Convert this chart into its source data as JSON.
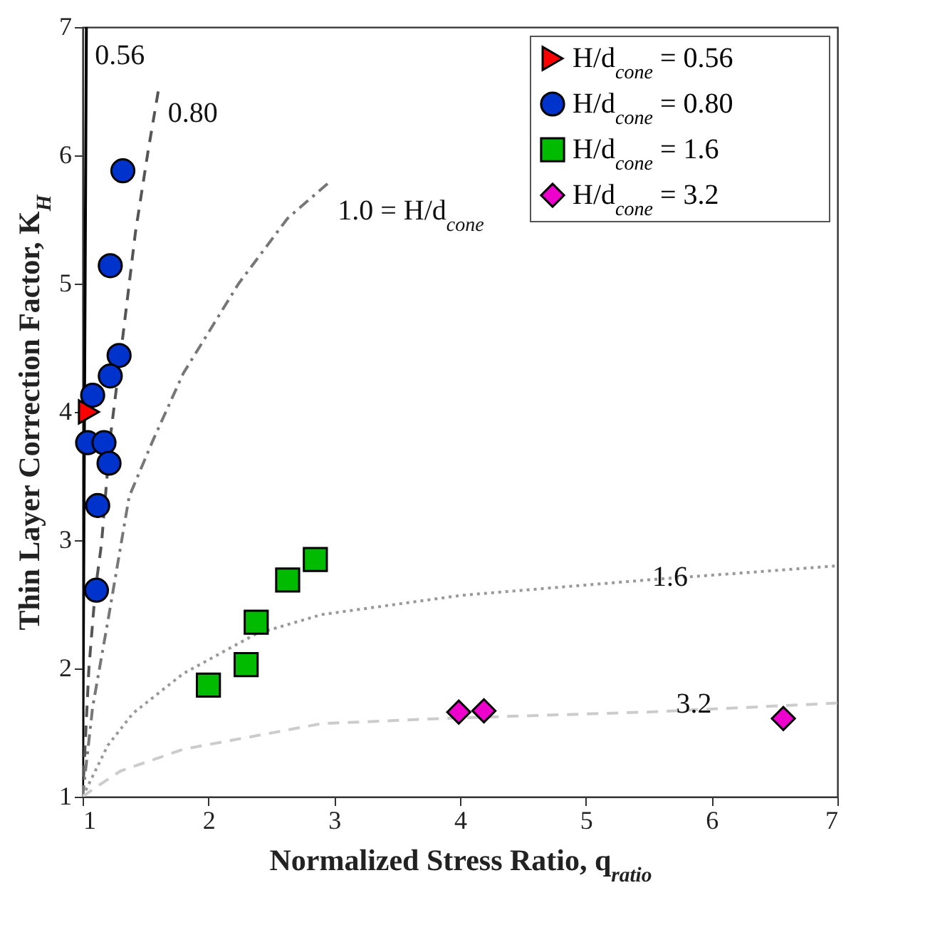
{
  "chart_data": {
    "type": "scatter",
    "xlabel": "Normalized Stress Ratio, q$_{ratio}$",
    "ylabel": "Thin Layer Correction Factor, K$_{H}$",
    "xlim": [
      1,
      7
    ],
    "ylim": [
      1,
      7
    ],
    "xticks": [
      1,
      2,
      3,
      4,
      5,
      6,
      7
    ],
    "yticks": [
      1,
      2,
      3,
      4,
      5,
      6,
      7
    ],
    "legend": "top right",
    "series": [
      {
        "type": "line",
        "color": "#000000",
        "line_style": "solid",
        "x": [
          1,
          1.01,
          1.02,
          1.03
        ],
        "values": [
          1,
          3,
          5,
          7
        ]
      },
      {
        "type": "line",
        "color": "#555555",
        "line_style": "dashed",
        "x": [
          1,
          1.05,
          1.1,
          1.15,
          1.22,
          1.32,
          1.42,
          1.52,
          1.61
        ],
        "values": [
          1,
          2,
          2.6,
          2.97,
          3.8,
          4.59,
          5.4,
          6.03,
          6.55
        ]
      },
      {
        "type": "line",
        "color": "#777777",
        "line_style": "dashdot",
        "x": [
          1,
          1.08,
          1.21,
          1.37,
          1.56,
          1.8,
          2.24,
          2.63,
          2.96
        ],
        "values": [
          1,
          1.7,
          2.42,
          3.34,
          3.78,
          4.3,
          5.0,
          5.51,
          5.79
        ]
      },
      {
        "type": "line",
        "color": "#999999",
        "line_style": "dotted",
        "x": [
          1,
          1.2,
          1.4,
          1.8,
          2.38,
          2.9,
          4.01,
          5.49,
          7
        ],
        "values": [
          1,
          1.4,
          1.65,
          1.96,
          2.27,
          2.42,
          2.57,
          2.69,
          2.8
        ]
      },
      {
        "type": "line",
        "color": "#cccccc",
        "line_style": "dashed",
        "x": [
          1,
          1.1,
          1.3,
          1.8,
          2.9,
          3.86,
          5.49,
          7
        ],
        "values": [
          1,
          1.07,
          1.2,
          1.37,
          1.57,
          1.61,
          1.66,
          1.73
        ]
      },
      {
        "name": "H/d$_{cone}$ = 0.56",
        "color": "#ff0000",
        "marker": "triangle",
        "x": [
          1.05
        ],
        "values": [
          4.0
        ]
      },
      {
        "name": "H/d$_{cone}$ = 0.80",
        "color": "#0033cc",
        "marker": "circle",
        "x": [
          1.32,
          1.22,
          1.29,
          1.22,
          1.08,
          1.04,
          1.17,
          1.21,
          1.12,
          1.11
        ],
        "values": [
          5.88,
          5.14,
          4.44,
          4.28,
          4.13,
          3.76,
          3.76,
          3.6,
          3.27,
          2.61
        ]
      },
      {
        "name": "H/d$_{cone}$ = 1.6",
        "color": "#00bb00",
        "marker": "square",
        "x": [
          2.0,
          2.3,
          2.38,
          2.63,
          2.85
        ],
        "values": [
          1.87,
          2.03,
          2.36,
          2.69,
          2.85
        ]
      },
      {
        "name": "H/d$_{cone}$ = 3.2",
        "color": "#ee00cc",
        "marker": "diamond",
        "x": [
          3.99,
          4.19,
          6.57
        ],
        "values": [
          1.66,
          1.67,
          1.61
        ]
      }
    ],
    "annotations": [
      "0.56",
      "0.80",
      "1.0 = H/d$_{cone}$",
      {
        "text": "1.6",
        "x": 5.67,
        "y": 2.71
      },
      {
        "text": "3.2",
        "x": 5.86,
        "y": 1.72
      }
    ]
  }
}
